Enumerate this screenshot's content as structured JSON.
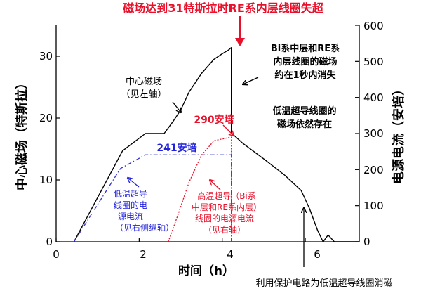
{
  "chart_data": {
    "type": "line",
    "title": "磁场达到31特斯拉时RE系内层线圈失超",
    "xlabel": "时间（h）",
    "ylabel_left": "中心磁场（特斯拉）",
    "ylabel_right": "电源电流（安培）",
    "xlim": [
      0,
      7.3
    ],
    "ylim_left": [
      0,
      35
    ],
    "ylim_right": [
      0,
      600
    ],
    "x_ticks": [
      "0",
      "2",
      "4",
      "6"
    ],
    "y_left_ticks": [
      "0",
      "10",
      "20",
      "30"
    ],
    "y_right_ticks": [
      "0",
      "100",
      "200",
      "300",
      "400",
      "500",
      "600"
    ],
    "grid": false,
    "legend": "none",
    "colors": {
      "field": "#000000",
      "lts": "#3333cc",
      "hts": "#e8102a",
      "annotation_red": "#e8102a",
      "annotation_blue": "#2222dd"
    },
    "series": [
      {
        "axis": "left",
        "color": "#000000",
        "x": [
          0.43,
          1.6,
          2.15,
          2.6,
          2.82,
          3.0,
          3.2,
          3.5,
          3.8,
          4.0,
          4.15,
          4.22,
          4.22,
          4.5,
          5.0,
          5.5,
          5.9,
          6.1,
          6.3,
          6.43,
          6.55,
          6.7,
          7.3
        ],
        "y": [
          0.0,
          14.7,
          17.5,
          17.5,
          19.5,
          21.3,
          24.2,
          27.2,
          29.5,
          30.4,
          31.0,
          31.4,
          17.6,
          15.9,
          13.4,
          10.8,
          8.3,
          5.4,
          1.8,
          0.0,
          1.1,
          0.0,
          0.0
        ]
      },
      {
        "axis": "right",
        "color": "#3333cc",
        "x": [
          0.43,
          1.55,
          2.15,
          4.22,
          4.22
        ],
        "y": [
          0,
          203,
          241,
          241,
          0
        ]
      },
      {
        "axis": "right",
        "color": "#e8102a",
        "x": [
          2.7,
          2.95,
          3.2,
          3.5,
          3.8,
          4.0,
          4.22,
          4.22
        ],
        "y": [
          0,
          80,
          165,
          240,
          280,
          285,
          290,
          0
        ]
      }
    ],
    "annotations": [
      {
        "text": "中心磁场",
        "color": "#000000"
      },
      {
        "text": "（见左轴）",
        "color": "#000000"
      },
      {
        "text": "290安培",
        "color": "#e8102a"
      },
      {
        "text": "241安培",
        "color": "#2222dd"
      },
      {
        "text": "Bi系中层和RE系",
        "color": "#000000"
      },
      {
        "text": "内层线圈的磁场",
        "color": "#000000"
      },
      {
        "text": "约在1秒内消失",
        "color": "#000000"
      },
      {
        "text": "低温超导线圈的",
        "color": "#000000"
      },
      {
        "text": "磁场依然存在",
        "color": "#000000"
      },
      {
        "text": "低温超导",
        "color": "#2222dd"
      },
      {
        "text": "线圈的电",
        "color": "#2222dd"
      },
      {
        "text": "源电流",
        "color": "#2222dd"
      },
      {
        "text": "（见右侧纵轴）",
        "color": "#2222dd"
      },
      {
        "text": "高温超导（Bi系",
        "color": "#e8102a"
      },
      {
        "text": "中层和RE系内层）",
        "color": "#e8102a"
      },
      {
        "text": "线圈的电源电流",
        "color": "#e8102a"
      },
      {
        "text": "（见右轴）",
        "color": "#e8102a"
      },
      {
        "text": "利用保护电路为低温超导线圈消磁",
        "color": "#000000"
      }
    ]
  }
}
